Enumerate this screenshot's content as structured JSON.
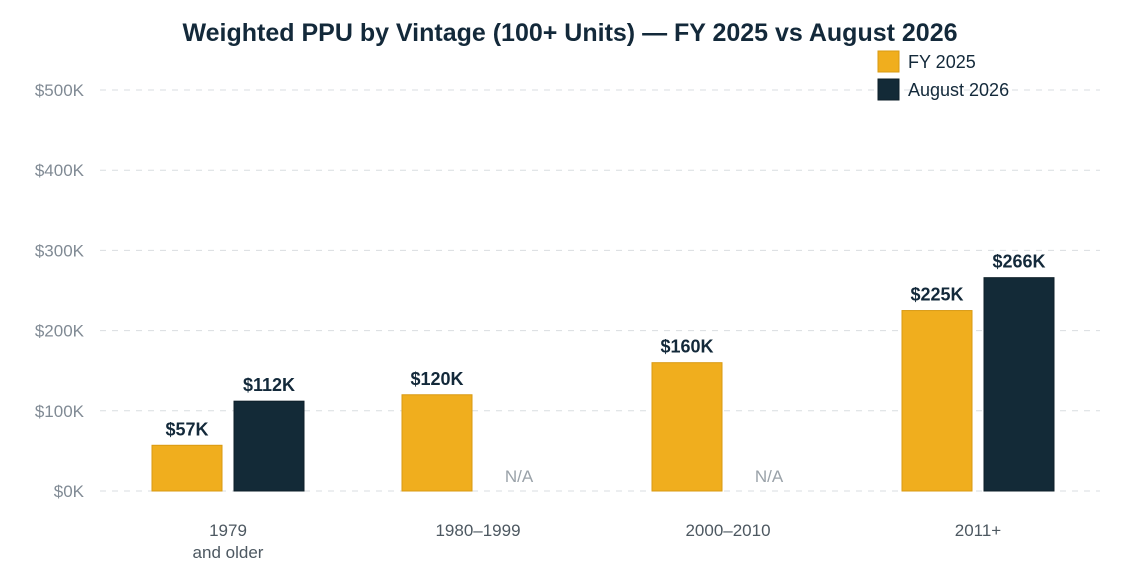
{
  "chart_data": {
    "type": "bar",
    "title": "Weighted PPU by Vintage (100+ Units) — FY 2025 vs August 2026",
    "categories": [
      [
        "1979",
        "and older"
      ],
      [
        "1980–1999"
      ],
      [
        "2000–2010"
      ],
      [
        "2011+"
      ]
    ],
    "series": [
      {
        "name": "FY 2025",
        "color": "#f0ae1e",
        "border": "#d99a12",
        "values": [
          57,
          120,
          160,
          225
        ],
        "labels": [
          "$57K",
          "$120K",
          "$160K",
          "$225K"
        ]
      },
      {
        "name": "August 2026",
        "color": "#132a37",
        "border": "#0e1f29",
        "values": [
          112,
          null,
          null,
          266
        ],
        "labels": [
          "$112K",
          "N/A",
          "N/A",
          "$266K"
        ]
      }
    ],
    "y_ticks": [
      0,
      100,
      200,
      300,
      400,
      500
    ],
    "y_tick_labels": [
      "$0K",
      "$100K",
      "$200K",
      "$300K",
      "$400K",
      "$500K"
    ],
    "ylim": [
      0,
      500
    ],
    "unit": "$K",
    "grid": true,
    "legend_position": "top-right"
  }
}
